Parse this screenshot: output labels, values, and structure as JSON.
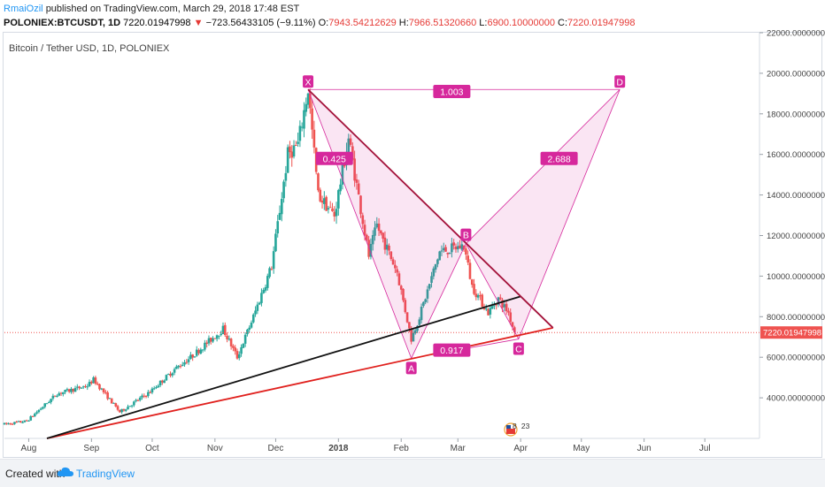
{
  "header": {
    "author": "RmaiOzil",
    "published_text": "published on TradingView.com, March 29, 2018 17:48 EST",
    "symbol": "POLONIEX:BTCUSDT, 1D",
    "price": "7220.01947998",
    "arrow": "▼",
    "change": "−723.56433105 (−9.11%)",
    "o_label": "O:",
    "o_value": "7943.54212629",
    "h_label": "H:",
    "h_value": "7966.51320660",
    "l_label": "L:",
    "l_value": "6900.10000000",
    "c_label": "C:",
    "c_value": "7220.01947998"
  },
  "footer": {
    "created_with": "Created with",
    "brand": "TradingView"
  },
  "colors": {
    "up": "#26a69a",
    "down": "#ef5350",
    "pattern": "#d6289c",
    "pattern_fill": "rgba(214,40,156,0.12)",
    "trend_red": "#e0201d",
    "trend_dark": "#a3123a",
    "trend_black": "#111111",
    "price_tag": "#ef5350"
  },
  "chart_data": {
    "type": "candlestick",
    "title": "Bitcoin / Tether USD, 1D, POLONIEX",
    "y_axis": {
      "position": "right",
      "range": [
        2000,
        22000
      ],
      "ticks": [
        "22000.00000000",
        "20000.00000000",
        "18000.00000000",
        "16000.00000000",
        "14000.00000000",
        "12000.00000000",
        "10000.00000000",
        "8000.00000000",
        "6000.00000000",
        "4000.00000000"
      ],
      "tick_values": [
        22000,
        20000,
        18000,
        16000,
        14000,
        12000,
        10000,
        8000,
        6000,
        4000
      ]
    },
    "x_axis": {
      "range": [
        "2017-07-20",
        "2018-07-28"
      ],
      "ticks": [
        {
          "label": "Aug",
          "date": "2017-08-01",
          "bold": false
        },
        {
          "label": "Sep",
          "date": "2017-09-01",
          "bold": false
        },
        {
          "label": "Oct",
          "date": "2017-10-01",
          "bold": false
        },
        {
          "label": "Nov",
          "date": "2017-11-01",
          "bold": false
        },
        {
          "label": "Dec",
          "date": "2017-12-01",
          "bold": false
        },
        {
          "label": "2018",
          "date": "2018-01-01",
          "bold": true
        },
        {
          "label": "Feb",
          "date": "2018-02-01",
          "bold": false
        },
        {
          "label": "Mar",
          "date": "2018-03-01",
          "bold": false
        },
        {
          "label": "Apr",
          "date": "2018-04-01",
          "bold": false
        },
        {
          "label": "May",
          "date": "2018-05-01",
          "bold": false
        },
        {
          "label": "Jun",
          "date": "2018-06-01",
          "bold": false
        },
        {
          "label": "Jul",
          "date": "2018-07-01",
          "bold": false
        }
      ]
    },
    "price_anchors": [
      [
        "2017-07-20",
        2700
      ],
      [
        "2017-07-31",
        2850
      ],
      [
        "2017-08-15",
        4200
      ],
      [
        "2017-08-30",
        4600
      ],
      [
        "2017-09-02",
        4900
      ],
      [
        "2017-09-15",
        3300
      ],
      [
        "2017-09-30",
        4300
      ],
      [
        "2017-10-12",
        5400
      ],
      [
        "2017-10-20",
        6000
      ],
      [
        "2017-11-05",
        7400
      ],
      [
        "2017-11-12",
        6000
      ],
      [
        "2017-11-20",
        8000
      ],
      [
        "2017-11-29",
        10500
      ],
      [
        "2017-12-07",
        16000
      ],
      [
        "2017-12-12",
        16500
      ],
      [
        "2017-12-17",
        19200
      ],
      [
        "2017-12-22",
        14000
      ],
      [
        "2017-12-30",
        13000
      ],
      [
        "2018-01-06",
        16800
      ],
      [
        "2018-01-16",
        11000
      ],
      [
        "2018-01-20",
        12500
      ],
      [
        "2018-01-30",
        10200
      ],
      [
        "2018-02-06",
        6900
      ],
      [
        "2018-02-10",
        8000
      ],
      [
        "2018-02-20",
        11200
      ],
      [
        "2018-03-04",
        11500
      ],
      [
        "2018-03-08",
        9500
      ],
      [
        "2018-03-16",
        8200
      ],
      [
        "2018-03-21",
        8900
      ],
      [
        "2018-03-26",
        8200
      ],
      [
        "2018-03-29",
        7220
      ]
    ],
    "last_price": {
      "value": 7220.01947998,
      "label": "7220.01947998"
    },
    "pattern": {
      "type": "XABCD",
      "points": [
        {
          "name": "X",
          "date": "2017-12-17",
          "value": 19200
        },
        {
          "name": "A",
          "date": "2018-02-06",
          "value": 5950
        },
        {
          "name": "B",
          "date": "2018-03-05",
          "value": 11600
        },
        {
          "name": "C",
          "date": "2018-03-31",
          "value": 6900
        },
        {
          "name": "D",
          "date": "2018-05-20",
          "value": 19200
        }
      ],
      "ratios": [
        {
          "label": "0.425",
          "date": "2017-12-30",
          "value": 15800
        },
        {
          "label": "0.917",
          "date": "2018-02-26",
          "value": 6350
        },
        {
          "label": "2.688",
          "date": "2018-04-20",
          "value": 15800
        },
        {
          "label": "1.003",
          "date": "2018-02-26",
          "value": 19100
        }
      ]
    },
    "trendlines": [
      {
        "name": "support-red",
        "color": "#e0201d",
        "from": {
          "date": "2017-08-10",
          "value": 2000
        },
        "to": {
          "date": "2018-04-17",
          "value": 7450
        }
      },
      {
        "name": "support-black",
        "color": "#111111",
        "from": {
          "date": "2017-08-10",
          "value": 2000
        },
        "to": {
          "date": "2018-04-01",
          "value": 9000
        }
      },
      {
        "name": "resistance-dark",
        "color": "#a3123a",
        "from": {
          "date": "2017-12-17",
          "value": 19200
        },
        "to": {
          "date": "2018-04-17",
          "value": 7450
        }
      }
    ],
    "events": [
      {
        "label": "8",
        "date": "2018-03-28"
      },
      {
        "label": "23",
        "date": "2018-03-31"
      }
    ]
  }
}
